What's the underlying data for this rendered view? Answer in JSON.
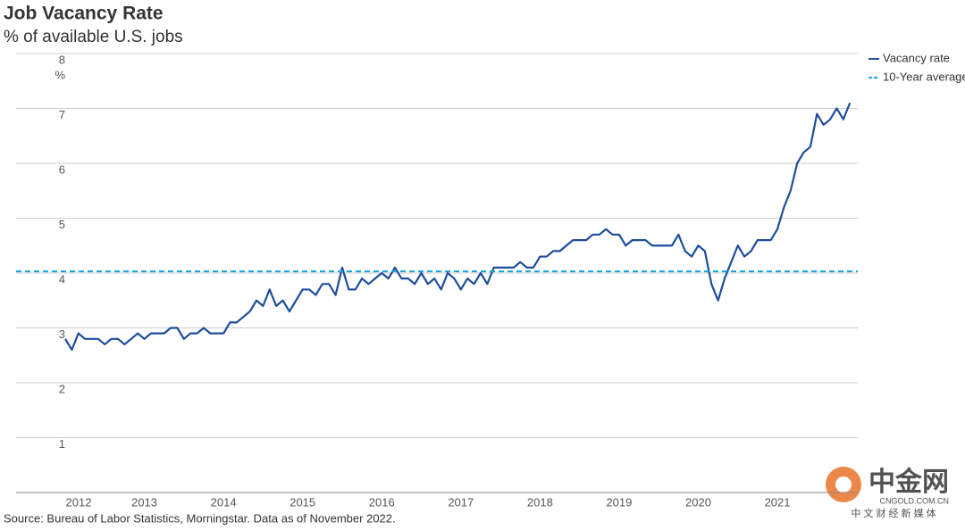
{
  "chart_data": {
    "type": "line",
    "title": "Job Vacancy Rate",
    "subtitle": "% of available U.S. jobs",
    "y_unit": "%",
    "source": "Source: Bureau of Labor Statistics, Morningstar. Data as of November 2022.",
    "categories": [
      "2012",
      null,
      null,
      null,
      null,
      null,
      null,
      null,
      null,
      null,
      null,
      null,
      "2013",
      null,
      null,
      null,
      null,
      null,
      null,
      null,
      null,
      null,
      null,
      null,
      "2014",
      null,
      null,
      null,
      null,
      null,
      null,
      null,
      null,
      null,
      null,
      null,
      "2015",
      null,
      null,
      null,
      null,
      null,
      null,
      null,
      null,
      null,
      null,
      null,
      "2016",
      null,
      null,
      null,
      null,
      null,
      null,
      null,
      null,
      null,
      null,
      null,
      "2017",
      null,
      null,
      null,
      null,
      null,
      null,
      null,
      null,
      null,
      null,
      null,
      "2018",
      null,
      null,
      null,
      null,
      null,
      null,
      null,
      null,
      null,
      null,
      null,
      "2019",
      null,
      null,
      null,
      null,
      null,
      null,
      null,
      null,
      null,
      null,
      null,
      "2020",
      null,
      null,
      null,
      null,
      null,
      null,
      null,
      null,
      null,
      null,
      null,
      "2021",
      null,
      null,
      null,
      null,
      null,
      null,
      null,
      null,
      null,
      null,
      null
    ],
    "series": [
      {
        "name": "Vacancy rate",
        "color": "#1f4e9c",
        "values": [
          2.8,
          2.6,
          2.9,
          2.8,
          2.8,
          2.8,
          2.7,
          2.8,
          2.8,
          2.7,
          2.8,
          2.9,
          2.8,
          2.9,
          2.9,
          2.9,
          3.0,
          3.0,
          2.8,
          2.9,
          2.9,
          3.0,
          2.9,
          2.9,
          2.9,
          3.1,
          3.1,
          3.2,
          3.3,
          3.5,
          3.4,
          3.7,
          3.4,
          3.5,
          3.3,
          3.5,
          3.7,
          3.7,
          3.6,
          3.8,
          3.8,
          3.6,
          4.1,
          3.7,
          3.7,
          3.9,
          3.8,
          3.9,
          4.0,
          3.9,
          4.1,
          3.9,
          3.9,
          3.8,
          4.0,
          3.8,
          3.9,
          3.7,
          4.0,
          3.9,
          3.7,
          3.9,
          3.8,
          4.0,
          3.8,
          4.1,
          4.1,
          4.1,
          4.1,
          4.2,
          4.1,
          4.1,
          4.3,
          4.3,
          4.4,
          4.4,
          4.5,
          4.6,
          4.6,
          4.6,
          4.7,
          4.7,
          4.8,
          4.7,
          4.7,
          4.5,
          4.6,
          4.6,
          4.6,
          4.5,
          4.5,
          4.5,
          4.5,
          4.7,
          4.4,
          4.3,
          4.5,
          4.4,
          3.8,
          3.5,
          3.9,
          4.2,
          4.5,
          4.3,
          4.4,
          4.6,
          4.6,
          4.6,
          4.8,
          5.2,
          5.5,
          6.0,
          6.2,
          6.3,
          6.9,
          6.7,
          6.8,
          7.0,
          6.8,
          7.1
        ]
      },
      {
        "name": "10-Year average",
        "color": "#1aa3dc",
        "dashed": true,
        "constant": 4.03
      }
    ],
    "ylim": [
      0,
      8
    ],
    "yticks": [
      1,
      2,
      3,
      4,
      5,
      6,
      7,
      8
    ],
    "grid": true,
    "legend": "top-right",
    "watermark": {
      "logo": "中金网",
      "site": "CNGOLD.COM.CN",
      "tagline": "中 文 财 经 新 媒 体"
    }
  }
}
